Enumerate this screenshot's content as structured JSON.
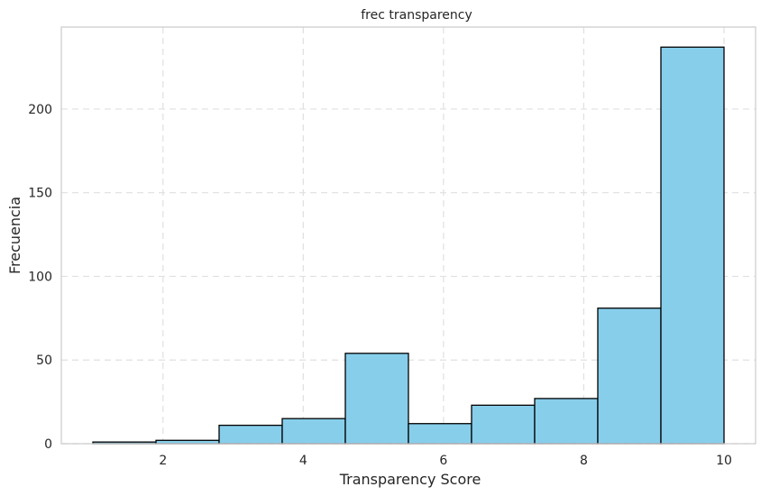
{
  "chart_data": {
    "type": "bar",
    "title": "frec transparency",
    "xlabel": "Transparency Score",
    "ylabel": "Frecuencia",
    "bin_edges": [
      1.0,
      1.9,
      2.8,
      3.7,
      4.6,
      5.5,
      6.4,
      7.3,
      8.2,
      9.1,
      10.0
    ],
    "values": [
      1,
      2,
      11,
      15,
      54,
      12,
      23,
      27,
      81,
      237
    ],
    "xlim": [
      0.55,
      10.45
    ],
    "ylim": [
      0,
      249
    ],
    "xticks": [
      2,
      4,
      6,
      8,
      10
    ],
    "yticks": [
      0,
      50,
      100,
      150,
      200
    ],
    "grid": true,
    "colors": {
      "bar_fill": "#87CEEB",
      "bar_edge": "#000000",
      "grid": "#e0e0e0",
      "frame": "#cccccc"
    }
  }
}
